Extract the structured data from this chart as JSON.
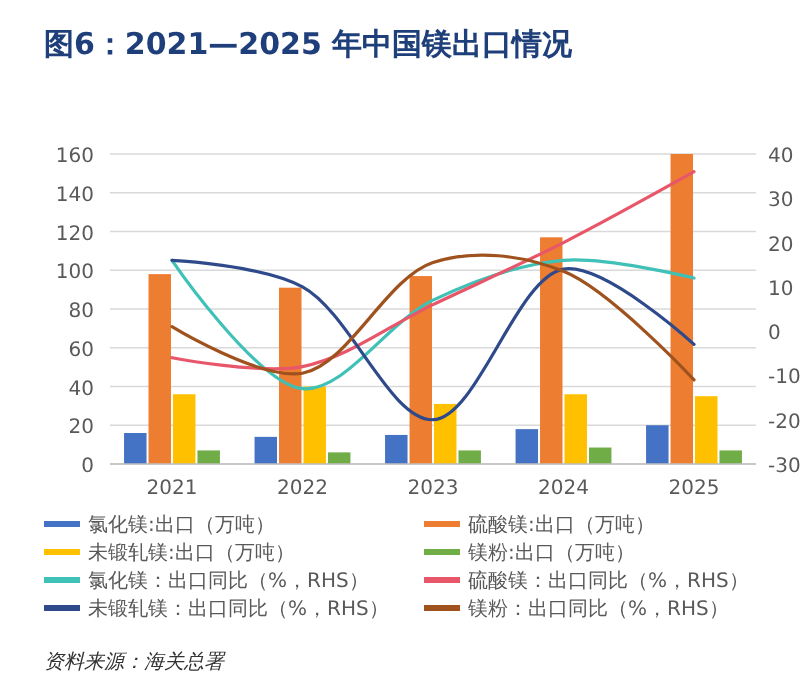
{
  "chart_data": {
    "type": "bar",
    "title": "图6：2021—2025 年中国镁出口情况",
    "categories": [
      "2021",
      "2022",
      "2023",
      "2024",
      "2025"
    ],
    "series": [
      {
        "name": "氯化镁:出口（万吨）",
        "color": "#4472c4",
        "values": [
          16,
          14,
          15,
          18,
          20
        ]
      },
      {
        "name": "硫酸镁:出口（万吨）",
        "color": "#ed7d31",
        "values": [
          98,
          91,
          97,
          117,
          160
        ]
      },
      {
        "name": "未锻轧镁:出口（万吨）",
        "color": "#ffc000",
        "values": [
          36,
          40,
          31,
          36,
          35
        ]
      },
      {
        "name": "镁粉:出口（万吨）",
        "color": "#70ad47",
        "values": [
          7,
          6,
          7,
          8.5,
          7
        ]
      },
      {
        "name": "氯化镁：出口同比（%，RHS）",
        "type": "line",
        "axis": "y2",
        "color": "#3fc1b8",
        "values": [
          16,
          -13,
          7,
          16,
          12
        ]
      },
      {
        "name": "硫酸镁：出口同比（%，RHS）",
        "type": "line",
        "axis": "y2",
        "color": "#e8566a",
        "values": [
          -6,
          -8,
          6,
          20,
          36
        ]
      },
      {
        "name": "未锻轧镁：出口同比（%，RHS）",
        "type": "line",
        "axis": "y2",
        "color": "#2e4a8a",
        "values": [
          16,
          10,
          -20,
          14,
          -3
        ]
      },
      {
        "name": "镁粉：出口同比（%，RHS）",
        "type": "line",
        "axis": "y2",
        "color": "#a0521e",
        "values": [
          1,
          -9.5,
          15.5,
          13.5,
          -11
        ]
      }
    ],
    "ylim": [
      0,
      160
    ],
    "yticks": [
      0,
      20,
      40,
      60,
      80,
      100,
      120,
      140,
      160
    ],
    "y2lim": [
      -30,
      40
    ],
    "y2ticks": [
      -30,
      -20,
      -10,
      0,
      10,
      20,
      30,
      40
    ],
    "grid": "y",
    "legend": "bottom",
    "annotations": [
      "资料来源：海关总署"
    ]
  }
}
